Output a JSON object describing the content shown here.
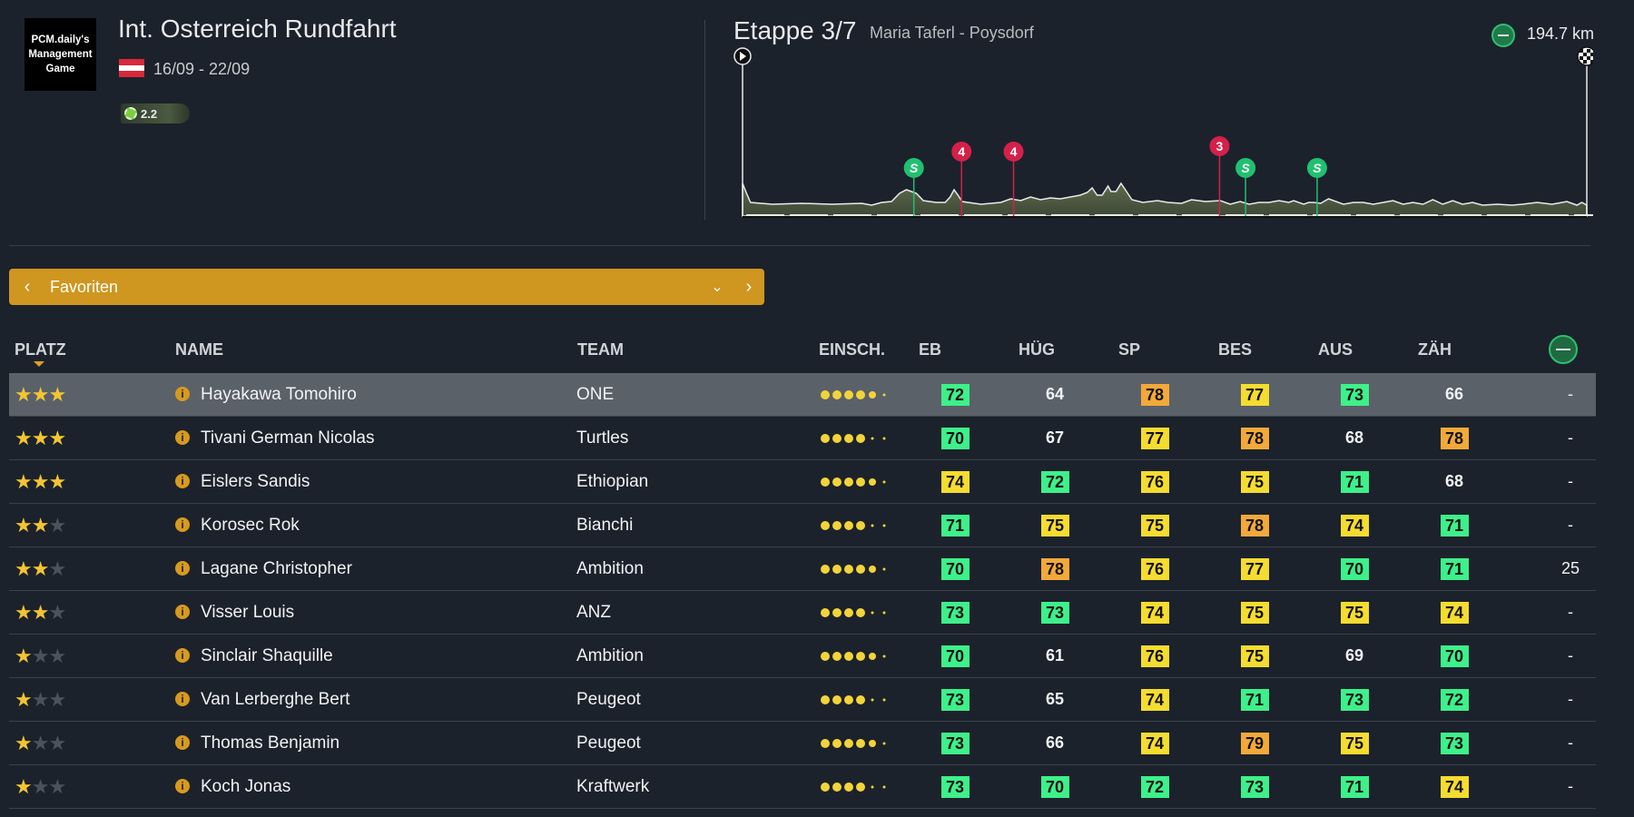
{
  "header": {
    "logo_text": "PCM.daily's Management Game",
    "race_title": "Int. Osterreich Rundfahrt",
    "dates": "16/09 - 22/09",
    "category": "2.2",
    "stage_label": "Etappe 3/7",
    "route": "Maria Taferl - Poysdorf",
    "distance": "194.7 km"
  },
  "profile": {
    "markers": [
      {
        "type": "sprint",
        "label": "S",
        "km": 39.5
      },
      {
        "type": "climb",
        "label": "4",
        "km": 50.5
      },
      {
        "type": "climb",
        "label": "4",
        "km": 62.5
      },
      {
        "type": "climb",
        "label": "3",
        "km": 110
      },
      {
        "type": "sprint",
        "label": "S",
        "km": 116
      },
      {
        "type": "sprint",
        "label": "S",
        "km": 132.5
      }
    ]
  },
  "selector": {
    "label": "Favoriten"
  },
  "columns": {
    "platz": "PLATZ",
    "name": "NAME",
    "team": "TEAM",
    "einsch": "EINSCH.",
    "eb": "EB",
    "hug": "HÜG",
    "sp": "SP",
    "bes": "BES",
    "aus": "AUS",
    "zah": "ZÄH"
  },
  "colors": {
    "green": "#3ef08a",
    "yellow": "#f5dc30",
    "orange": "#f2a93a",
    "accent": "#cf9620"
  },
  "riders": [
    {
      "stars": 3,
      "name": "Hayakawa Tomohiro",
      "team": "ONE",
      "eb": "72",
      "hug": "64",
      "sp": "78",
      "bes": "77",
      "aus": "73",
      "zah": "66",
      "last": "-"
    },
    {
      "stars": 3,
      "name": "Tivani German Nicolas",
      "team": "Turtles",
      "eb": "70",
      "hug": "67",
      "sp": "77",
      "bes": "78",
      "aus": "68",
      "zah": "78",
      "last": "-"
    },
    {
      "stars": 3,
      "name": "Eislers Sandis",
      "team": "Ethiopian",
      "eb": "74",
      "hug": "72",
      "sp": "76",
      "bes": "75",
      "aus": "71",
      "zah": "68",
      "last": "-"
    },
    {
      "stars": 2,
      "name": "Korosec Rok",
      "team": "Bianchi",
      "eb": "71",
      "hug": "75",
      "sp": "75",
      "bes": "78",
      "aus": "74",
      "zah": "71",
      "last": "-"
    },
    {
      "stars": 2,
      "name": "Lagane Christopher",
      "team": "Ambition",
      "eb": "70",
      "hug": "78",
      "sp": "76",
      "bes": "77",
      "aus": "70",
      "zah": "71",
      "last": "25"
    },
    {
      "stars": 2,
      "name": "Visser Louis",
      "team": "ANZ",
      "eb": "73",
      "hug": "73",
      "sp": "74",
      "bes": "75",
      "aus": "75",
      "zah": "74",
      "last": "-"
    },
    {
      "stars": 1,
      "name": "Sinclair Shaquille",
      "team": "Ambition",
      "eb": "70",
      "hug": "61",
      "sp": "76",
      "bes": "75",
      "aus": "69",
      "zah": "70",
      "last": "-"
    },
    {
      "stars": 1,
      "name": "Van Lerberghe Bert",
      "team": "Peugeot",
      "eb": "73",
      "hug": "65",
      "sp": "74",
      "bes": "71",
      "aus": "73",
      "zah": "72",
      "last": "-"
    },
    {
      "stars": 1,
      "name": "Thomas Benjamin",
      "team": "Peugeot",
      "eb": "73",
      "hug": "66",
      "sp": "74",
      "bes": "79",
      "aus": "75",
      "zah": "73",
      "last": "-"
    },
    {
      "stars": 1,
      "name": "Koch Jonas",
      "team": "Kraftwerk",
      "eb": "73",
      "hug": "70",
      "sp": "72",
      "bes": "73",
      "aus": "71",
      "zah": "74",
      "last": "-"
    }
  ]
}
